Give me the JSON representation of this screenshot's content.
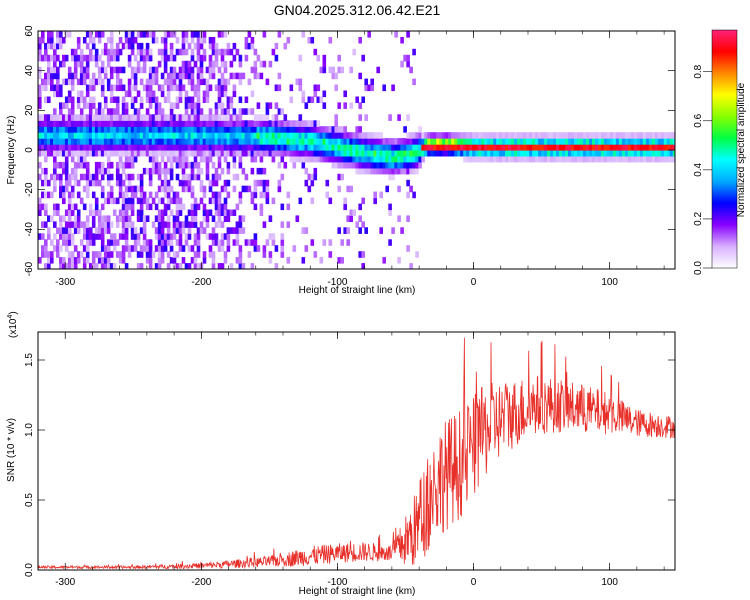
{
  "page": {
    "title": "GN04.2025.312.06.42.E21"
  },
  "chart_data": [
    {
      "type": "heatmap",
      "xlabel": "Height of straight line (km)",
      "ylabel": "Frequency (Hz)",
      "xlim": [
        -320,
        148
      ],
      "ylim": [
        -60,
        60
      ],
      "x_ticks": [
        -300,
        -200,
        -100,
        0,
        100
      ],
      "y_ticks": [
        -60,
        -40,
        -20,
        0,
        20,
        40,
        60
      ],
      "grid": false,
      "colorbar": {
        "label": "Normalized spectral amplitude",
        "range": [
          0,
          0.97
        ],
        "ticks": [
          "0.0",
          "0.2",
          "0.4",
          "0.6",
          "0.8"
        ],
        "tick_values": [
          0.0,
          0.2,
          0.4,
          0.6,
          0.8
        ],
        "colors": [
          "#ffffff",
          "#d8b0ff",
          "#8800ff",
          "#0000ff",
          "#00aaff",
          "#00ffff",
          "#00ff44",
          "#88ff00",
          "#ffff00",
          "#ff8800",
          "#ff0000",
          "#ff2277"
        ]
      },
      "ridge": {
        "description_points": [
          {
            "x": -235,
            "y": 6
          },
          {
            "x": -200,
            "y": 6
          },
          {
            "x": -150,
            "y": 5
          },
          {
            "x": -120,
            "y": 3
          },
          {
            "x": -100,
            "y": 0
          },
          {
            "x": -80,
            "y": -3
          },
          {
            "x": -60,
            "y": -5
          },
          {
            "x": -45,
            "y": -3
          },
          {
            "x": -35,
            "y": 1
          },
          {
            "x": -20,
            "y": 1
          },
          {
            "x": 0,
            "y": 0
          },
          {
            "x": 148,
            "y": 0
          }
        ]
      }
    },
    {
      "type": "line",
      "xlabel": "Height of straight line (km)",
      "ylabel": "SNR (10 * v/v)",
      "scale_label": "(x10",
      "scale_exp": "4",
      "scale_close": ")",
      "xlim": [
        -320,
        148
      ],
      "ylim": [
        0,
        1.7
      ],
      "x_ticks": [
        -300,
        -200,
        -100,
        0,
        100
      ],
      "y_ticks": [
        "0.0",
        "0.5",
        "1.0",
        "1.5"
      ],
      "y_tick_values": [
        0.0,
        0.5,
        1.0,
        1.5
      ],
      "grid": false,
      "color": "#e8302a",
      "envelope": {
        "x": [
          -320,
          -250,
          -200,
          -150,
          -120,
          -100,
          -80,
          -60,
          -45,
          -35,
          -25,
          -15,
          -5,
          5,
          15,
          30,
          45,
          60,
          80,
          100,
          120,
          148
        ],
        "mean": [
          0.02,
          0.02,
          0.03,
          0.06,
          0.1,
          0.12,
          0.13,
          0.12,
          0.25,
          0.45,
          0.65,
          0.72,
          0.8,
          0.95,
          1.05,
          1.12,
          1.18,
          1.18,
          1.15,
          1.12,
          1.05,
          1.02
        ],
        "spread": [
          0.01,
          0.01,
          0.02,
          0.04,
          0.07,
          0.07,
          0.07,
          0.06,
          0.25,
          0.35,
          0.4,
          0.4,
          0.4,
          0.35,
          0.3,
          0.25,
          0.22,
          0.2,
          0.18,
          0.15,
          0.1,
          0.08
        ]
      }
    }
  ]
}
